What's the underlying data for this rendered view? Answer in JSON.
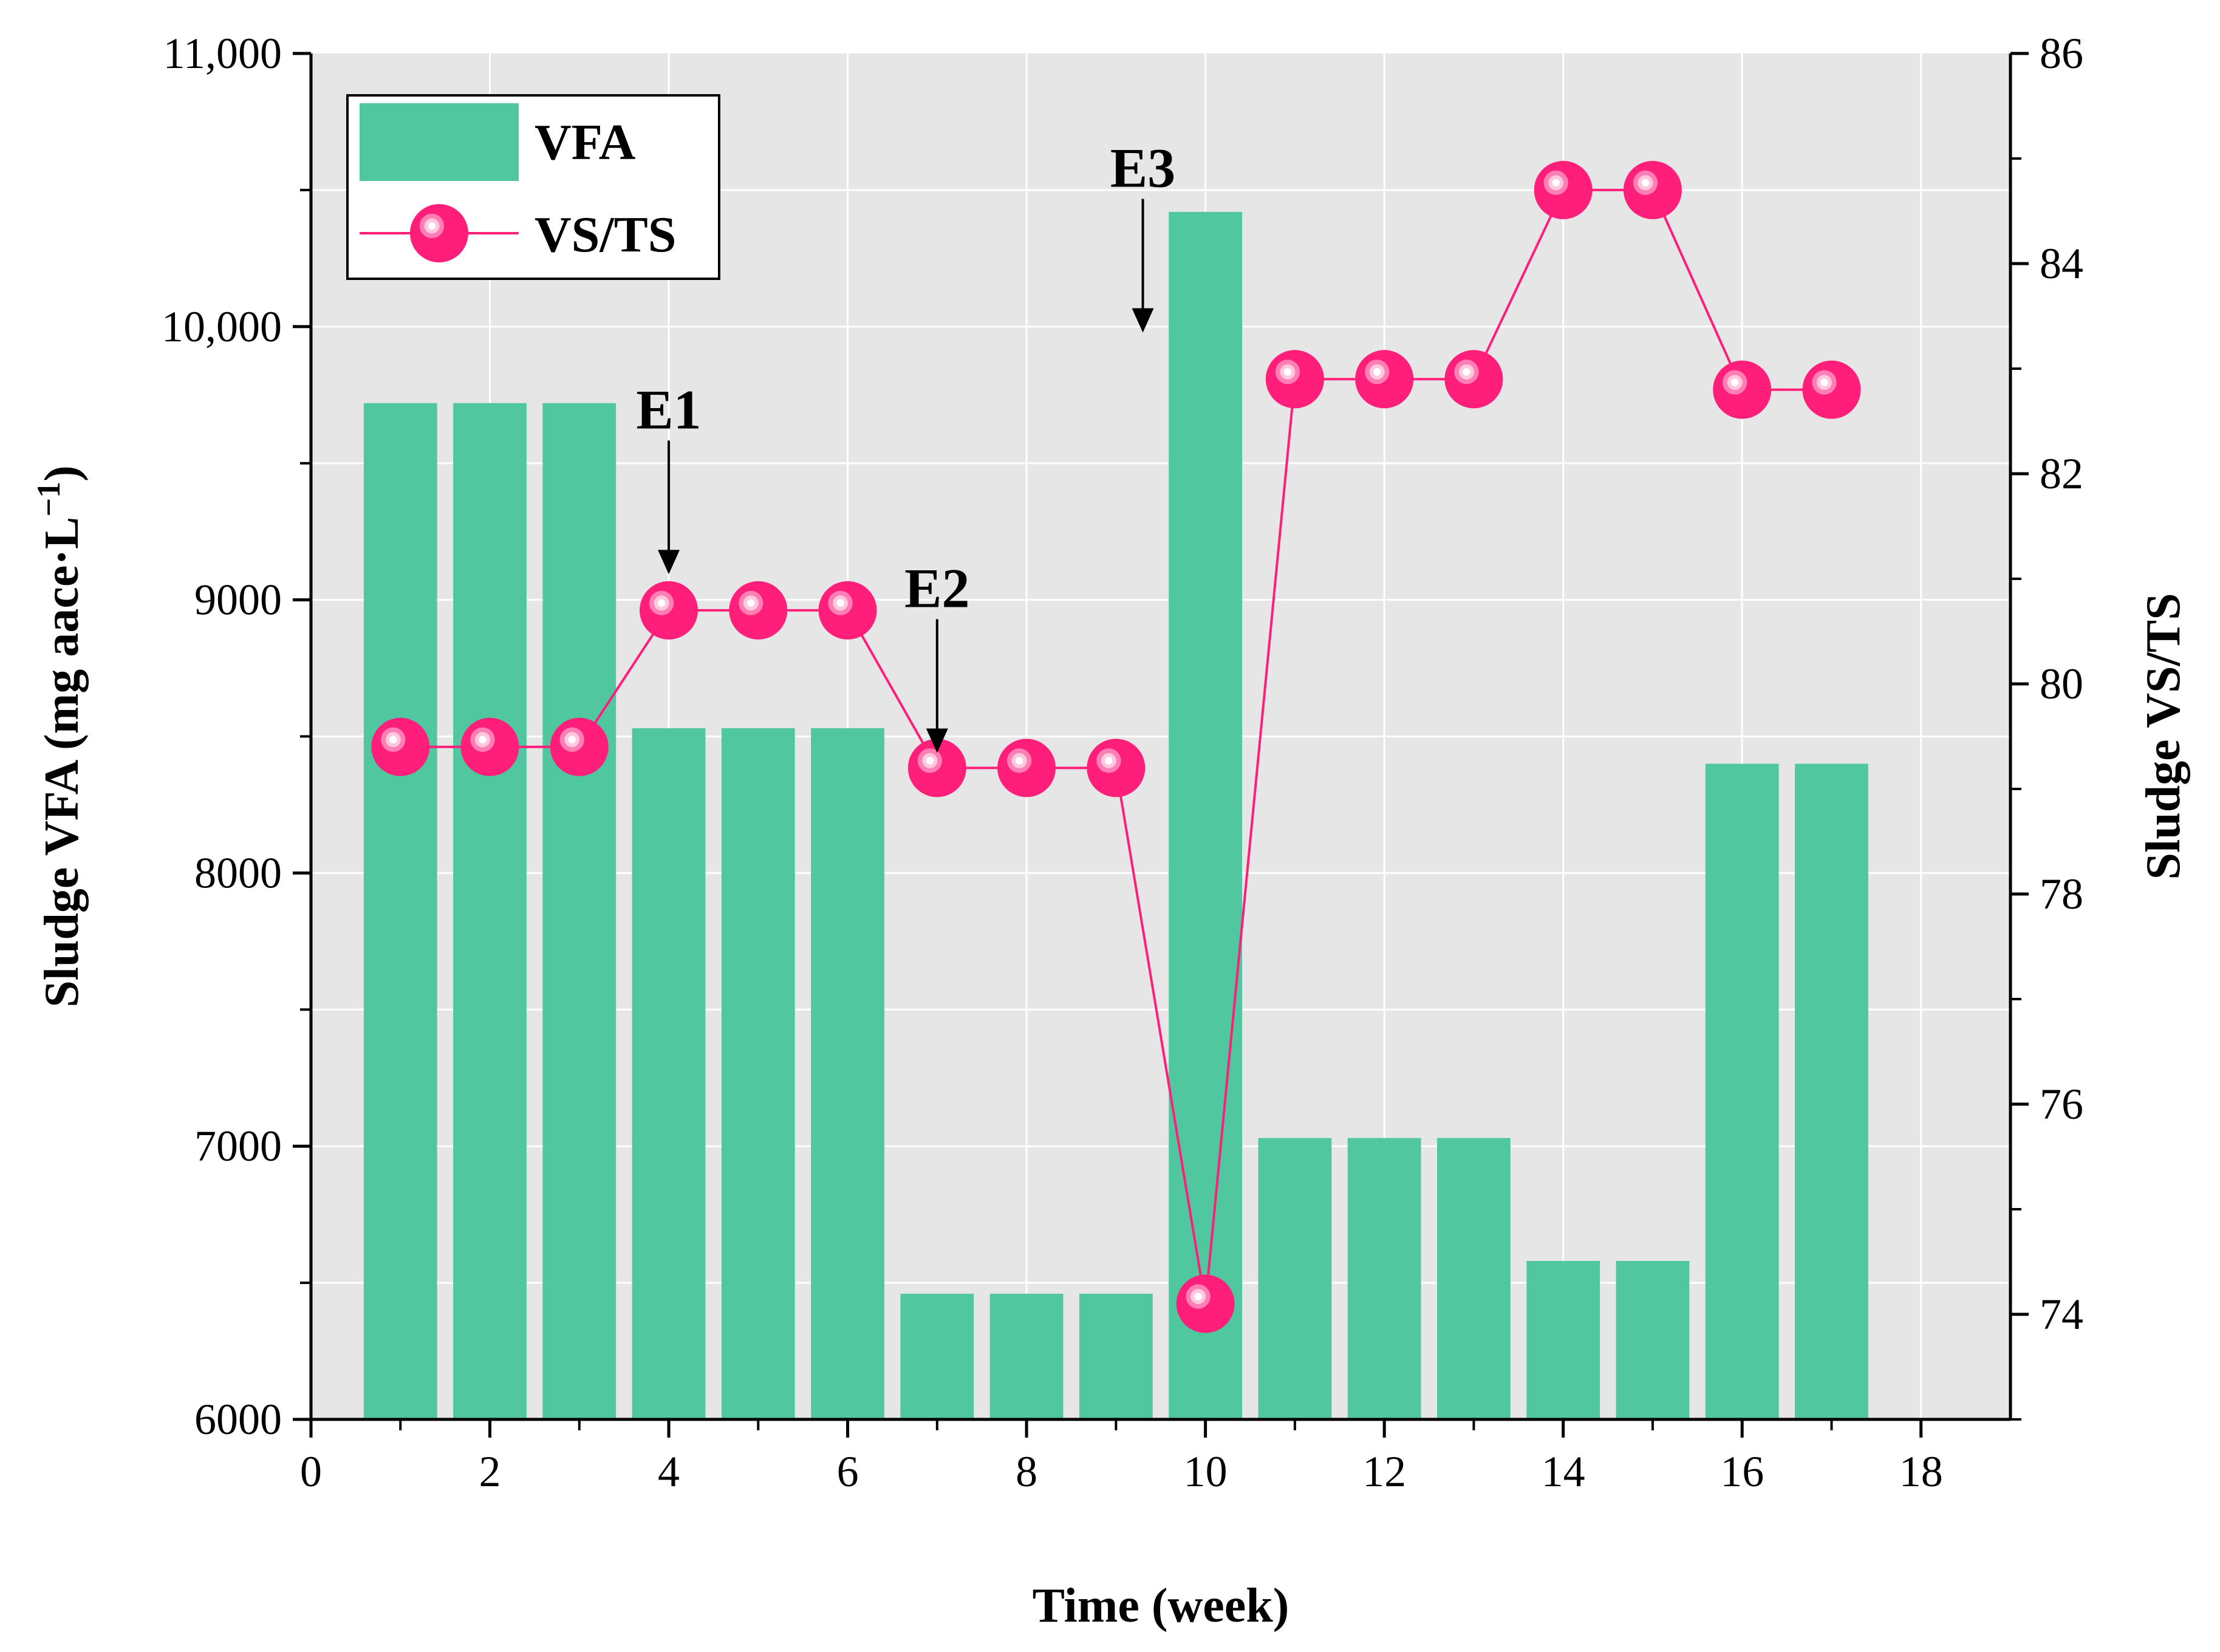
{
  "chart_data": {
    "type": "bar+line",
    "x": [
      1,
      2,
      3,
      4,
      5,
      6,
      7,
      8,
      9,
      10,
      11,
      12,
      13,
      14,
      15,
      16,
      17
    ],
    "series": [
      {
        "name": "VFA",
        "kind": "bar",
        "axis": "left",
        "color": "#50C79E",
        "values": [
          9720,
          9720,
          9720,
          8530,
          8530,
          8530,
          6460,
          6460,
          6460,
          10420,
          7030,
          7030,
          7030,
          6580,
          6580,
          8400,
          8400
        ]
      },
      {
        "name": "VS/TS",
        "kind": "line",
        "axis": "right",
        "color": "#FF1F7A",
        "values": [
          79.4,
          79.4,
          79.4,
          80.7,
          80.7,
          80.7,
          79.2,
          79.2,
          79.2,
          74.1,
          82.9,
          82.9,
          82.9,
          84.7,
          84.7,
          82.8,
          82.8
        ]
      }
    ],
    "xlabel": "Time (week)",
    "ylabel": {
      "main": "Sludge VFA (mg aace·L",
      "superscript": "−1",
      "close": ")"
    },
    "y2label": "Sludge VS/TS",
    "xlim": [
      0,
      19
    ],
    "ylim": [
      6000,
      11000
    ],
    "y2lim": [
      73,
      86
    ],
    "xticks": [
      "0",
      "2",
      "4",
      "6",
      "8",
      "10",
      "12",
      "14",
      "16",
      "18"
    ],
    "yticks": [
      "6000",
      "7000",
      "8000",
      "9000",
      "10,000",
      "11,000"
    ],
    "y2ticks": [
      "74",
      "76",
      "78",
      "80",
      "82",
      "84",
      "86"
    ],
    "annotations": [
      {
        "text": "E1",
        "x": 4.0,
        "y": 82.2
      },
      {
        "text": "E2",
        "x": 7.0,
        "y": 80.5
      },
      {
        "text": "E3",
        "x": 9.3,
        "y": 84.5
      }
    ],
    "legend": [
      "VFA",
      "VS/TS"
    ],
    "legend_position": "top-left",
    "grid": true,
    "background": "#E6E6E6"
  }
}
